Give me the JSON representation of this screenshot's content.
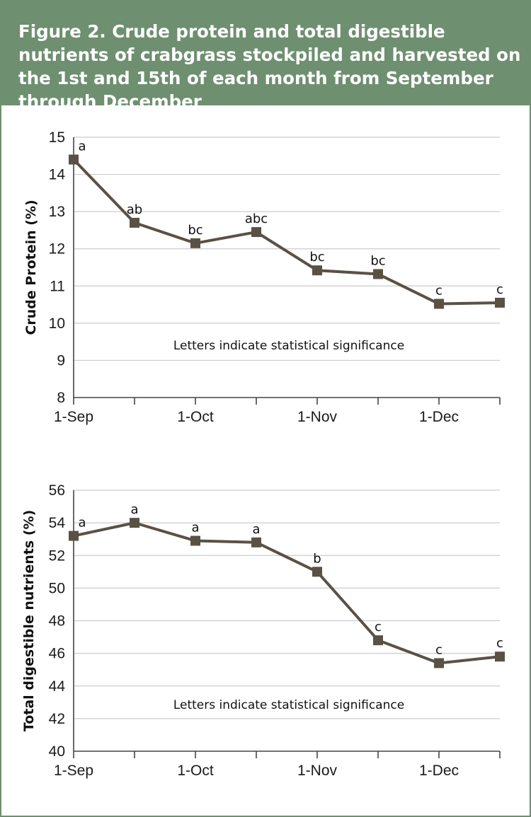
{
  "figure": {
    "title": "Figure 2. Crude protein and total digestible nutrients of crabgrass stockpiled and harvested on the 1st and 15th of each month from September through December"
  },
  "colors": {
    "header_bg": "#6e8f70",
    "line": "#5a5145",
    "marker": "#5a5145",
    "grid": "#cccccc",
    "axis": "#444444"
  },
  "chart_data": [
    {
      "type": "line",
      "ylabel": "Crude Protein (%)",
      "xlabel": "",
      "ylim": [
        8,
        15
      ],
      "yticks": [
        8,
        9,
        10,
        11,
        12,
        13,
        14,
        15
      ],
      "xlim": [
        0,
        7
      ],
      "xticks": [
        {
          "pos": 0,
          "label": "1-Sep"
        },
        {
          "pos": 2,
          "label": "1-Oct"
        },
        {
          "pos": 4,
          "label": "1-Nov"
        },
        {
          "pos": 6,
          "label": "1-Dec"
        }
      ],
      "grid": true,
      "points": [
        {
          "x": 0,
          "y": 14.4,
          "label": "a"
        },
        {
          "x": 1,
          "y": 12.7,
          "label": "ab"
        },
        {
          "x": 2,
          "y": 12.15,
          "label": "bc"
        },
        {
          "x": 3,
          "y": 12.45,
          "label": "abc"
        },
        {
          "x": 4,
          "y": 11.42,
          "label": "bc"
        },
        {
          "x": 5,
          "y": 11.32,
          "label": "bc"
        },
        {
          "x": 6,
          "y": 10.52,
          "label": "c"
        },
        {
          "x": 7,
          "y": 10.55,
          "label": "c"
        }
      ],
      "annotation": "Letters indicate statistical significance"
    },
    {
      "type": "line",
      "ylabel": "Total digestible nutrients (%)",
      "xlabel": "",
      "ylim": [
        40,
        56
      ],
      "yticks": [
        40,
        42,
        44,
        46,
        48,
        50,
        52,
        54,
        56
      ],
      "xlim": [
        0,
        7
      ],
      "xticks": [
        {
          "pos": 0,
          "label": "1-Sep"
        },
        {
          "pos": 2,
          "label": "1-Oct"
        },
        {
          "pos": 4,
          "label": "1-Nov"
        },
        {
          "pos": 6,
          "label": "1-Dec"
        }
      ],
      "grid": true,
      "points": [
        {
          "x": 0,
          "y": 53.2,
          "label": "a"
        },
        {
          "x": 1,
          "y": 54.0,
          "label": "a"
        },
        {
          "x": 2,
          "y": 52.9,
          "label": "a"
        },
        {
          "x": 3,
          "y": 52.8,
          "label": "a"
        },
        {
          "x": 4,
          "y": 51.0,
          "label": "b"
        },
        {
          "x": 5,
          "y": 46.8,
          "label": "c"
        },
        {
          "x": 6,
          "y": 45.4,
          "label": "c"
        },
        {
          "x": 7,
          "y": 45.8,
          "label": "c"
        }
      ],
      "annotation": "Letters indicate statistical significance"
    }
  ]
}
